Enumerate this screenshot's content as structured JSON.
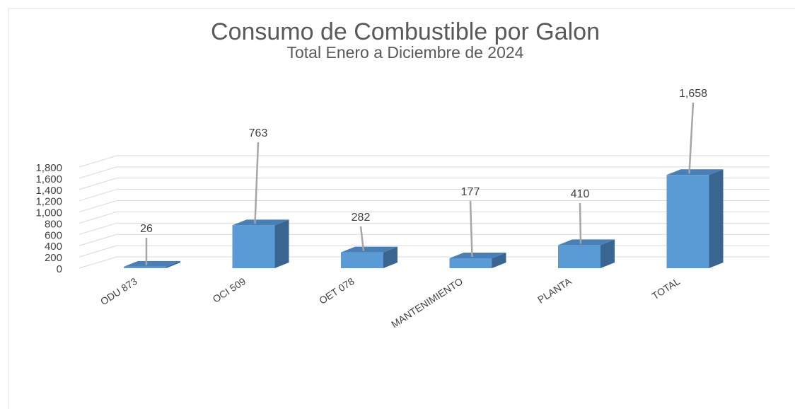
{
  "chart_data": {
    "type": "bar3d",
    "title": "Consumo de Combustible por Galon",
    "subtitle": "Total Enero a Diciembre de 2024",
    "categories": [
      "ODU 873",
      "OCI 509",
      "OET 078",
      "MANTENIMIENTO",
      "PLANTA",
      "TOTAL"
    ],
    "values": [
      26,
      763,
      282,
      177,
      410,
      1658
    ],
    "value_labels": [
      "26",
      "763",
      "282",
      "177",
      "410",
      "1,658"
    ],
    "color": "#5b9bd5",
    "ylim": [
      0,
      1800
    ],
    "yticks": [
      0,
      200,
      400,
      600,
      800,
      {
        "value": 1000,
        "label": "1,000"
      },
      {
        "value": 1200,
        "label": "1,200"
      },
      {
        "value": 1400,
        "label": "1,400"
      },
      {
        "value": 1600,
        "label": "1,600"
      },
      {
        "value": 1800,
        "label": "1,800"
      }
    ],
    "grid": true
  }
}
